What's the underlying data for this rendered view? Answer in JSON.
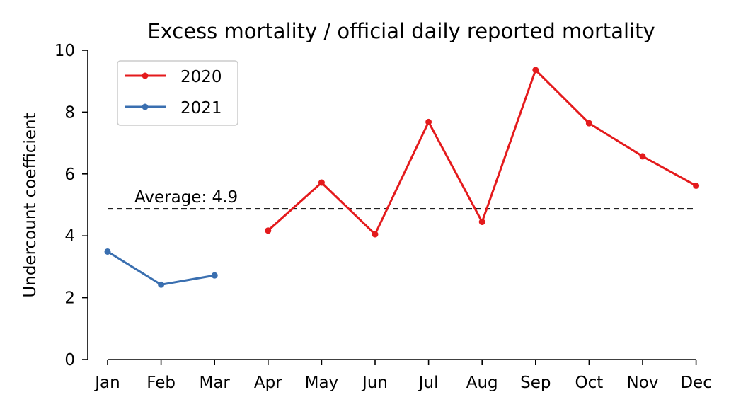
{
  "chart_data": {
    "type": "line",
    "title": "Excess mortality / official daily reported mortality",
    "xlabel": "",
    "ylabel": "Undercount coefficient",
    "categories": [
      "Jan",
      "Feb",
      "Mar",
      "Apr",
      "May",
      "Jun",
      "Jul",
      "Aug",
      "Sep",
      "Oct",
      "Nov",
      "Dec"
    ],
    "ylim": [
      0,
      10
    ],
    "yticks": [
      "0",
      "2",
      "4",
      "6",
      "8",
      "10"
    ],
    "series": [
      {
        "name": "2020",
        "color": "#e41a1c",
        "values": [
          null,
          null,
          null,
          4.17,
          5.72,
          4.05,
          7.68,
          4.45,
          9.36,
          7.64,
          6.57,
          5.62
        ]
      },
      {
        "name": "2021",
        "color": "#3a6fb0",
        "values": [
          3.49,
          2.42,
          2.72,
          null,
          null,
          null,
          null,
          null,
          null,
          null,
          null,
          null
        ]
      }
    ],
    "average": {
      "value": 4.87,
      "label": "Average: 4.9"
    },
    "legend_position": "top-left",
    "grid": false
  }
}
